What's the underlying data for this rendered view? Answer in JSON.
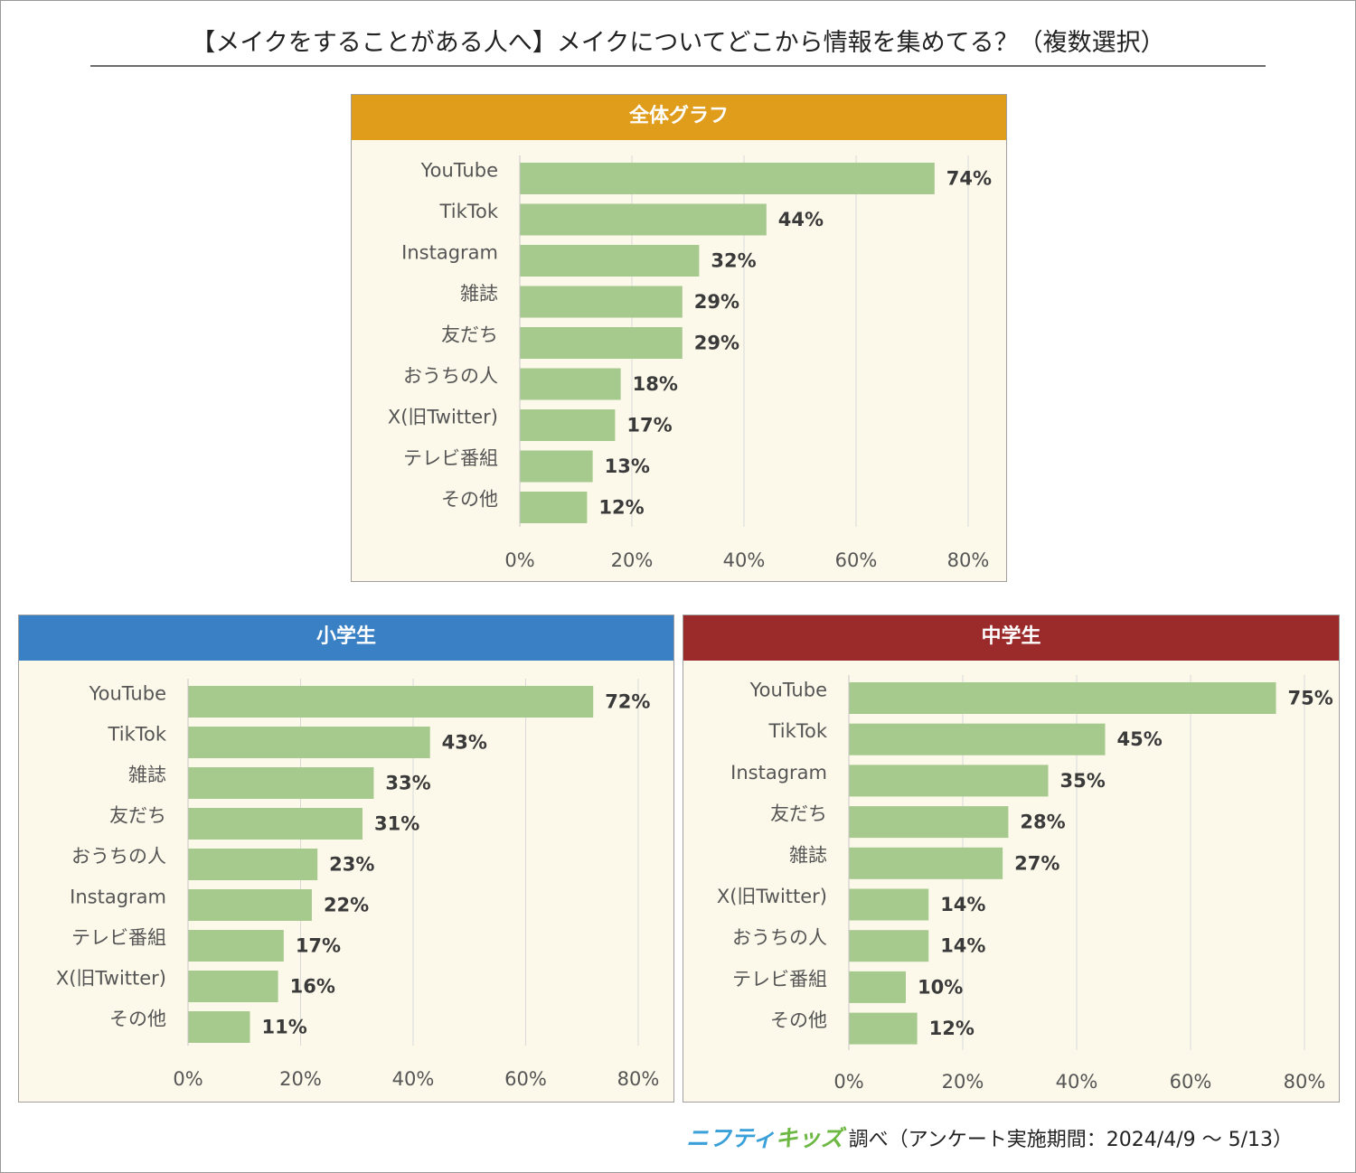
{
  "title": "【メイクをすることがある人へ】メイクについてどこから情報を集めてる？（複数選択）",
  "colors": {
    "bar": "#a6c98d",
    "grid": "#d9d9d9",
    "overall_header": "#e09c1b",
    "elementary_header": "#3a80c4",
    "junior_high_header": "#9b2a2a",
    "panel_bg": "#fcf9ea"
  },
  "footer": {
    "brand_part1": "ニフティ",
    "brand_part2": "キッズ",
    "text": "調べ（アンケート実施期間：2024/4/9 ～ 5/13）"
  },
  "chart_data": [
    {
      "type": "bar",
      "orientation": "horizontal",
      "title": "全体グラフ",
      "categories": [
        "YouTube",
        "TikTok",
        "Instagram",
        "雑誌",
        "友だち",
        "おうちの人",
        "X(旧Twitter)",
        "テレビ番組",
        "その他"
      ],
      "values": [
        74,
        44,
        32,
        29,
        29,
        18,
        17,
        13,
        12
      ],
      "value_labels": [
        "74%",
        "44%",
        "32%",
        "29%",
        "29%",
        "18%",
        "17%",
        "13%",
        "12%"
      ],
      "xlim": [
        0,
        80
      ],
      "xticks": [
        "0%",
        "20%",
        "40%",
        "60%",
        "80%"
      ],
      "grid": true,
      "legend": "none"
    },
    {
      "type": "bar",
      "orientation": "horizontal",
      "title": "小学生",
      "categories": [
        "YouTube",
        "TikTok",
        "雑誌",
        "友だち",
        "おうちの人",
        "Instagram",
        "テレビ番組",
        "X(旧Twitter)",
        "その他"
      ],
      "values": [
        72,
        43,
        33,
        31,
        23,
        22,
        17,
        16,
        11
      ],
      "value_labels": [
        "72%",
        "43%",
        "33%",
        "31%",
        "23%",
        "22%",
        "17%",
        "16%",
        "11%"
      ],
      "xlim": [
        0,
        80
      ],
      "xticks": [
        "0%",
        "20%",
        "40%",
        "60%",
        "80%"
      ],
      "grid": true,
      "legend": "none"
    },
    {
      "type": "bar",
      "orientation": "horizontal",
      "title": "中学生",
      "categories": [
        "YouTube",
        "TikTok",
        "Instagram",
        "友だち",
        "雑誌",
        "X(旧Twitter)",
        "おうちの人",
        "テレビ番組",
        "その他"
      ],
      "values": [
        75,
        45,
        35,
        28,
        27,
        14,
        14,
        10,
        12
      ],
      "value_labels": [
        "75%",
        "45%",
        "35%",
        "28%",
        "27%",
        "14%",
        "14%",
        "10%",
        "12%"
      ],
      "xlim": [
        0,
        80
      ],
      "xticks": [
        "0%",
        "20%",
        "40%",
        "60%",
        "80%"
      ],
      "grid": true,
      "legend": "none"
    }
  ]
}
